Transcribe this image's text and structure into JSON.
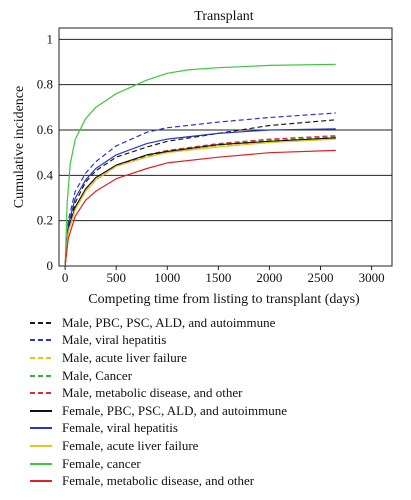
{
  "chart_data": {
    "type": "line",
    "title": "Transplant",
    "xlabel": "Competing time from listing to transplant (days)",
    "ylabel": "Cumulative incidence",
    "xlim": [
      -60,
      3200
    ],
    "ylim": [
      0,
      1.05
    ],
    "xticks": [
      0,
      500,
      1000,
      1500,
      2000,
      2500,
      3000
    ],
    "yticks": [
      0,
      0.2,
      0.4,
      0.6,
      0.8,
      1
    ],
    "ytick_labels": [
      "0",
      "0.2",
      "0.4",
      "0.6",
      "0.8",
      "1"
    ],
    "grid": "horizontal",
    "series": [
      {
        "name": "Male, PBC, PSC, ALD, and autoimmune",
        "color": "#1a1a1a",
        "dash": "dashed",
        "x": [
          0,
          30,
          100,
          200,
          300,
          500,
          800,
          1000,
          1500,
          2000,
          2650
        ],
        "y": [
          0,
          0.17,
          0.28,
          0.37,
          0.42,
          0.48,
          0.525,
          0.55,
          0.585,
          0.62,
          0.645
        ]
      },
      {
        "name": "Male, viral hepatitis",
        "color": "#2b35c8",
        "dash": "dashed",
        "x": [
          0,
          30,
          100,
          200,
          300,
          500,
          800,
          1000,
          1500,
          2000,
          2650
        ],
        "y": [
          0,
          0.2,
          0.33,
          0.41,
          0.46,
          0.53,
          0.59,
          0.61,
          0.635,
          0.655,
          0.675
        ]
      },
      {
        "name": "Male, acute liver failure",
        "color": "#e8c420",
        "dash": "dashed",
        "x": [
          0,
          30,
          100,
          200,
          300,
          500,
          800,
          1000,
          1500,
          2000,
          2650
        ],
        "y": [
          0,
          0.15,
          0.25,
          0.33,
          0.38,
          0.44,
          0.485,
          0.505,
          0.53,
          0.55,
          0.565
        ]
      },
      {
        "name": "Male, Cancer",
        "color": "#3cb03c",
        "dash": "dashed",
        "x": [
          0,
          30,
          100,
          200,
          300,
          500,
          800,
          1000,
          1500,
          2000,
          2650
        ],
        "y": [
          0,
          0.15,
          0.25,
          0.33,
          0.38,
          0.44,
          0.485,
          0.505,
          0.535,
          0.555,
          0.57
        ]
      },
      {
        "name": "Male, metabolic disease, and other",
        "color": "#d83030",
        "dash": "dashed",
        "x": [
          0,
          30,
          100,
          200,
          300,
          500,
          800,
          1000,
          1500,
          2000,
          2650
        ],
        "y": [
          0,
          0.15,
          0.26,
          0.33,
          0.38,
          0.44,
          0.49,
          0.51,
          0.54,
          0.56,
          0.575
        ]
      },
      {
        "name": "Female, PBC, PSC, ALD, and autoimmune",
        "color": "#111111",
        "dash": "solid",
        "x": [
          0,
          30,
          100,
          200,
          300,
          500,
          800,
          1000,
          1500,
          2000,
          2650
        ],
        "y": [
          0,
          0.16,
          0.26,
          0.34,
          0.39,
          0.445,
          0.49,
          0.505,
          0.535,
          0.55,
          0.565
        ]
      },
      {
        "name": "Female, viral hepatitis",
        "color": "#2b35c8",
        "dash": "solid",
        "x": [
          0,
          30,
          100,
          200,
          300,
          500,
          800,
          1000,
          1500,
          2000,
          2650
        ],
        "y": [
          0,
          0.18,
          0.3,
          0.38,
          0.43,
          0.49,
          0.54,
          0.56,
          0.585,
          0.6,
          0.605
        ]
      },
      {
        "name": "Female, acute liver failure",
        "color": "#e8c420",
        "dash": "solid",
        "x": [
          0,
          30,
          100,
          200,
          300,
          500,
          800,
          1000,
          1500,
          2000,
          2650
        ],
        "y": [
          0,
          0.15,
          0.25,
          0.33,
          0.38,
          0.44,
          0.48,
          0.5,
          0.525,
          0.545,
          0.56
        ]
      },
      {
        "name": "Female, cancer",
        "color": "#3cc83c",
        "dash": "solid",
        "x": [
          0,
          20,
          50,
          100,
          200,
          300,
          400,
          500,
          600,
          800,
          1000,
          1200,
          1500,
          2000,
          2650
        ],
        "y": [
          0,
          0.28,
          0.45,
          0.56,
          0.65,
          0.7,
          0.73,
          0.76,
          0.78,
          0.82,
          0.85,
          0.865,
          0.875,
          0.885,
          0.89
        ]
      },
      {
        "name": "Female, metabolic disease, and other",
        "color": "#e02020",
        "dash": "solid",
        "x": [
          0,
          30,
          100,
          200,
          300,
          500,
          800,
          1000,
          1500,
          2000,
          2650
        ],
        "y": [
          0,
          0.12,
          0.22,
          0.29,
          0.33,
          0.385,
          0.43,
          0.455,
          0.48,
          0.5,
          0.51
        ]
      }
    ]
  }
}
